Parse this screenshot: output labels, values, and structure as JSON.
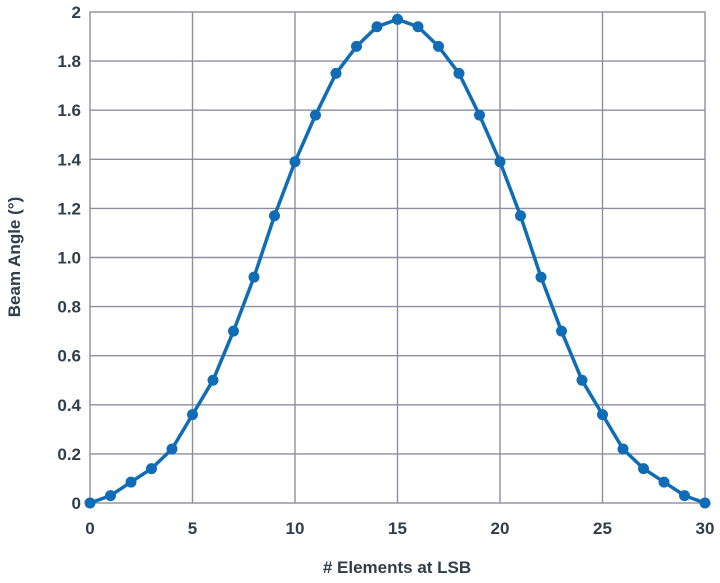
{
  "chart_data": {
    "type": "line",
    "title": "",
    "xlabel": "# Elements at LSB",
    "ylabel": "Beam Angle (°)",
    "xlim": [
      0,
      30
    ],
    "ylim": [
      0,
      2
    ],
    "xticks": [
      0,
      5,
      10,
      15,
      20,
      25,
      30
    ],
    "yticks": [
      0,
      0.2,
      0.4,
      0.6,
      0.8,
      1.0,
      1.2,
      1.4,
      1.6,
      1.8,
      2
    ],
    "ytick_labels": [
      "0",
      "0.2",
      "0.4",
      "0.6",
      "0.8",
      "1.0",
      "1.2",
      "1.4",
      "1.6",
      "1.8",
      "2"
    ],
    "grid": true,
    "line_color": "#0f6cb5",
    "series": [
      {
        "x": [
          0,
          1,
          2,
          3,
          4,
          5,
          6,
          7,
          8,
          9,
          10,
          11,
          12,
          13,
          14,
          15,
          16,
          17,
          18,
          19,
          20,
          21,
          22,
          23,
          24,
          25,
          26,
          27,
          28,
          29,
          30
        ],
        "values": [
          0,
          0.03,
          0.085,
          0.14,
          0.22,
          0.36,
          0.5,
          0.7,
          0.92,
          1.17,
          1.39,
          1.58,
          1.75,
          1.86,
          1.94,
          1.97,
          1.94,
          1.86,
          1.75,
          1.58,
          1.39,
          1.17,
          0.92,
          0.7,
          0.5,
          0.36,
          0.22,
          0.14,
          0.085,
          0.03,
          0
        ]
      }
    ]
  }
}
